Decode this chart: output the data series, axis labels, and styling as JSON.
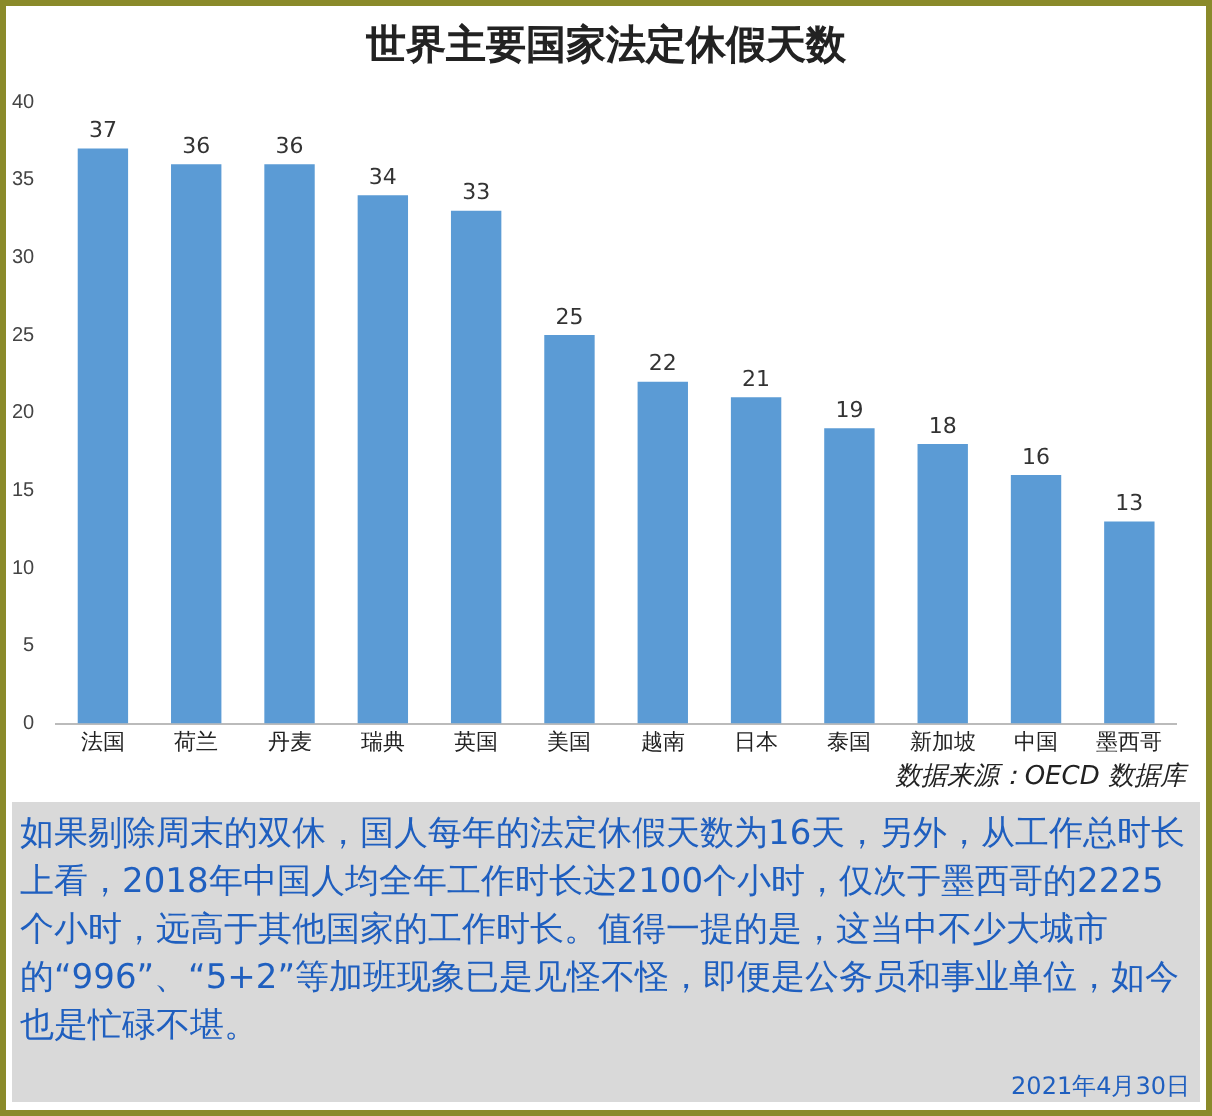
{
  "chart_data": {
    "type": "bar",
    "title": "世界主要国家法定休假天数",
    "categories": [
      "法国",
      "荷兰",
      "丹麦",
      "瑞典",
      "英国",
      "美国",
      "越南",
      "日本",
      "泰国",
      "新加坡",
      "中国",
      "墨西哥"
    ],
    "values": [
      37,
      36,
      36,
      34,
      33,
      25,
      22,
      21,
      19,
      18,
      16,
      13
    ],
    "color": "#5b9bd5",
    "ylim": [
      0,
      40
    ],
    "yticks": [
      0,
      5,
      10,
      15,
      20,
      25,
      30,
      35,
      40
    ],
    "grid": false,
    "legend": false,
    "data_labels": true,
    "annotations": [
      "数据来源：OECD 数据库",
      "如果剔除周末的双休，国人每年的法定休假天数为16天，另外，从工作总时长上看，2018年中国人均全年工作时长达2100个小时，仅次于墨西哥的2225个小时，远高于其他国家的工作时长。值得一提的是，这当中不少大城市的“996”、“5+2”等加班现象已是见怪不怪，即便是公务员和事业单位，如今也是忙碌不堪。",
      "2021年4月30日"
    ]
  }
}
